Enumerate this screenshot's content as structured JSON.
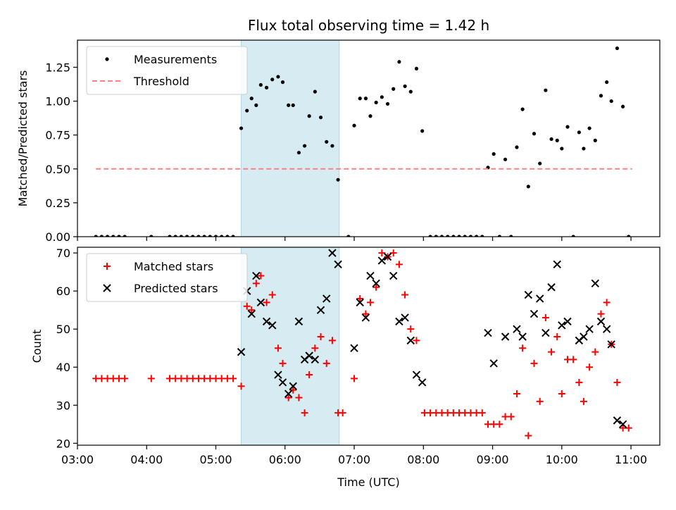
{
  "chart_data": [
    {
      "type": "scatter",
      "title": "Flux total observing time = 1.42 h",
      "xlabel": "",
      "ylabel": "Matched/Predicted stars",
      "xlim": [
        "03:00",
        "11:25"
      ],
      "ylim": [
        0,
        1.45
      ],
      "yticks": [
        0.0,
        0.25,
        0.5,
        0.75,
        1.0,
        1.25
      ],
      "ytick_labels": [
        "0.00",
        "0.25",
        "0.50",
        "0.75",
        "1.00",
        "1.25"
      ],
      "shaded_region": {
        "start": "05:22",
        "end": "06:47",
        "color": "#add8e6"
      },
      "legend_position": "top-left",
      "series": [
        {
          "name": "Measurements",
          "style": "dot",
          "color": "#000000",
          "points": [
            [
              "03:16",
              0
            ],
            [
              "03:21",
              0
            ],
            [
              "03:26",
              0
            ],
            [
              "03:31",
              0
            ],
            [
              "03:36",
              0
            ],
            [
              "03:41",
              0
            ],
            [
              "04:04",
              0
            ],
            [
              "04:20",
              0
            ],
            [
              "04:25",
              0
            ],
            [
              "04:30",
              0
            ],
            [
              "04:35",
              0
            ],
            [
              "04:40",
              0
            ],
            [
              "04:45",
              0
            ],
            [
              "04:50",
              0
            ],
            [
              "04:55",
              0
            ],
            [
              "05:00",
              0
            ],
            [
              "05:05",
              0
            ],
            [
              "05:10",
              0
            ],
            [
              "05:15",
              0
            ],
            [
              "05:22",
              0.8
            ],
            [
              "05:27",
              0.93
            ],
            [
              "05:31",
              1.02
            ],
            [
              "05:35",
              0.97
            ],
            [
              "05:39",
              1.12
            ],
            [
              "05:44",
              1.1
            ],
            [
              "05:49",
              1.16
            ],
            [
              "05:54",
              1.18
            ],
            [
              "05:58",
              1.14
            ],
            [
              "06:03",
              0.97
            ],
            [
              "06:07",
              0.97
            ],
            [
              "06:12",
              0.62
            ],
            [
              "06:17",
              0.67
            ],
            [
              "06:21",
              0.89
            ],
            [
              "06:26",
              1.07
            ],
            [
              "06:31",
              0.88
            ],
            [
              "06:36",
              0.7
            ],
            [
              "06:41",
              0.67
            ],
            [
              "06:46",
              0.42
            ],
            [
              "06:55",
              0
            ],
            [
              "07:00",
              0.82
            ],
            [
              "07:05",
              1.02
            ],
            [
              "07:10",
              1.02
            ],
            [
              "07:14",
              0.89
            ],
            [
              "07:19",
              0.99
            ],
            [
              "07:24",
              1.03
            ],
            [
              "07:29",
              0.98
            ],
            [
              "07:34",
              1.09
            ],
            [
              "07:39",
              1.29
            ],
            [
              "07:44",
              1.11
            ],
            [
              "07:49",
              1.07
            ],
            [
              "07:54",
              1.24
            ],
            [
              "07:59",
              0.78
            ],
            [
              "08:06",
              0
            ],
            [
              "08:11",
              0
            ],
            [
              "08:16",
              0
            ],
            [
              "08:21",
              0
            ],
            [
              "08:26",
              0
            ],
            [
              "08:31",
              0
            ],
            [
              "08:36",
              0
            ],
            [
              "08:41",
              0
            ],
            [
              "08:46",
              0
            ],
            [
              "08:51",
              0
            ],
            [
              "08:56",
              0.51
            ],
            [
              "09:01",
              0.61
            ],
            [
              "09:06",
              0
            ],
            [
              "09:11",
              0.57
            ],
            [
              "09:16",
              0
            ],
            [
              "09:21",
              0.66
            ],
            [
              "09:26",
              0.94
            ],
            [
              "09:31",
              0.37
            ],
            [
              "09:36",
              0.76
            ],
            [
              "09:41",
              0.54
            ],
            [
              "09:46",
              1.08
            ],
            [
              "09:51",
              0.72
            ],
            [
              "09:56",
              0.71
            ],
            [
              "10:00",
              0.65
            ],
            [
              "10:05",
              0.81
            ],
            [
              "10:10",
              0
            ],
            [
              "10:15",
              0.77
            ],
            [
              "10:19",
              0.65
            ],
            [
              "10:24",
              0.8
            ],
            [
              "10:29",
              0.71
            ],
            [
              "10:34",
              1.04
            ],
            [
              "10:39",
              1.14
            ],
            [
              "10:43",
              1.0
            ],
            [
              "10:48",
              1.39
            ],
            [
              "10:53",
              0.96
            ],
            [
              "10:58",
              0
            ]
          ]
        },
        {
          "name": "Threshold",
          "style": "dashed-line",
          "color": "#ff8080",
          "points": [
            [
              "03:16",
              0.5
            ],
            [
              "11:01",
              0.5
            ]
          ]
        }
      ]
    },
    {
      "type": "scatter",
      "title": "",
      "xlabel": "Time (UTC)",
      "ylabel": "Count",
      "xlim": [
        "03:00",
        "11:25"
      ],
      "ylim": [
        19.5,
        71.5
      ],
      "yticks": [
        20,
        30,
        40,
        50,
        60,
        70
      ],
      "ytick_labels": [
        "20",
        "30",
        "40",
        "50",
        "60",
        "70"
      ],
      "xticks": [
        "03:00",
        "04:00",
        "05:00",
        "06:00",
        "07:00",
        "08:00",
        "09:00",
        "10:00",
        "11:00"
      ],
      "xtick_labels": [
        "03:00",
        "04:00",
        "05:00",
        "06:00",
        "07:00",
        "08:00",
        "09:00",
        "10:00",
        "11:00"
      ],
      "shaded_region": {
        "start": "05:22",
        "end": "06:47",
        "color": "#add8e6"
      },
      "legend_position": "top-left",
      "series": [
        {
          "name": "Matched stars",
          "marker": "plus",
          "color": "#ff0000",
          "points": [
            [
              "03:16",
              37
            ],
            [
              "03:21",
              37
            ],
            [
              "03:26",
              37
            ],
            [
              "03:31",
              37
            ],
            [
              "03:36",
              37
            ],
            [
              "03:41",
              37
            ],
            [
              "04:04",
              37
            ],
            [
              "04:20",
              37
            ],
            [
              "04:25",
              37
            ],
            [
              "04:30",
              37
            ],
            [
              "04:35",
              37
            ],
            [
              "04:40",
              37
            ],
            [
              "04:45",
              37
            ],
            [
              "04:50",
              37
            ],
            [
              "04:55",
              37
            ],
            [
              "05:00",
              37
            ],
            [
              "05:05",
              37
            ],
            [
              "05:10",
              37
            ],
            [
              "05:15",
              37
            ],
            [
              "05:22",
              35
            ],
            [
              "05:27",
              56
            ],
            [
              "05:31",
              55
            ],
            [
              "05:35",
              62
            ],
            [
              "05:39",
              64
            ],
            [
              "05:44",
              57
            ],
            [
              "05:49",
              59
            ],
            [
              "05:54",
              45
            ],
            [
              "05:58",
              41
            ],
            [
              "06:03",
              32
            ],
            [
              "06:07",
              34
            ],
            [
              "06:12",
              32
            ],
            [
              "06:17",
              28
            ],
            [
              "06:21",
              38
            ],
            [
              "06:26",
              45
            ],
            [
              "06:31",
              48
            ],
            [
              "06:36",
              41
            ],
            [
              "06:41",
              47
            ],
            [
              "06:46",
              28
            ],
            [
              "06:50",
              28
            ],
            [
              "07:00",
              37
            ],
            [
              "07:05",
              58
            ],
            [
              "07:10",
              54
            ],
            [
              "07:14",
              57
            ],
            [
              "07:19",
              61
            ],
            [
              "07:24",
              70
            ],
            [
              "07:29",
              69
            ],
            [
              "07:34",
              70
            ],
            [
              "07:39",
              67
            ],
            [
              "07:44",
              59
            ],
            [
              "07:49",
              50
            ],
            [
              "07:54",
              47
            ],
            [
              "08:01",
              28
            ],
            [
              "08:06",
              28
            ],
            [
              "08:11",
              28
            ],
            [
              "08:16",
              28
            ],
            [
              "08:21",
              28
            ],
            [
              "08:26",
              28
            ],
            [
              "08:31",
              28
            ],
            [
              "08:36",
              28
            ],
            [
              "08:41",
              28
            ],
            [
              "08:46",
              28
            ],
            [
              "08:51",
              28
            ],
            [
              "08:56",
              25
            ],
            [
              "09:01",
              25
            ],
            [
              "09:06",
              25
            ],
            [
              "09:11",
              27
            ],
            [
              "09:16",
              27
            ],
            [
              "09:21",
              33
            ],
            [
              "09:26",
              45
            ],
            [
              "09:31",
              22
            ],
            [
              "09:36",
              41
            ],
            [
              "09:41",
              31
            ],
            [
              "09:46",
              53
            ],
            [
              "09:51",
              44
            ],
            [
              "09:56",
              48
            ],
            [
              "10:00",
              33
            ],
            [
              "10:05",
              42
            ],
            [
              "10:10",
              42
            ],
            [
              "10:15",
              36
            ],
            [
              "10:19",
              31
            ],
            [
              "10:24",
              40
            ],
            [
              "10:29",
              44
            ],
            [
              "10:34",
              54
            ],
            [
              "10:39",
              57
            ],
            [
              "10:43",
              46
            ],
            [
              "10:48",
              36
            ],
            [
              "10:53",
              24
            ],
            [
              "10:58",
              24
            ]
          ]
        },
        {
          "name": "Predicted stars",
          "marker": "x",
          "color": "#000000",
          "points": [
            [
              "05:22",
              44
            ],
            [
              "05:27",
              60
            ],
            [
              "05:31",
              54
            ],
            [
              "05:35",
              64
            ],
            [
              "05:39",
              57
            ],
            [
              "05:44",
              52
            ],
            [
              "05:49",
              51
            ],
            [
              "05:54",
              38
            ],
            [
              "05:58",
              36
            ],
            [
              "06:03",
              33
            ],
            [
              "06:07",
              35
            ],
            [
              "06:12",
              52
            ],
            [
              "06:17",
              42
            ],
            [
              "06:21",
              43
            ],
            [
              "06:26",
              42
            ],
            [
              "06:31",
              55
            ],
            [
              "06:36",
              58
            ],
            [
              "06:41",
              70
            ],
            [
              "06:46",
              67
            ],
            [
              "07:00",
              45
            ],
            [
              "07:05",
              57
            ],
            [
              "07:10",
              53
            ],
            [
              "07:14",
              64
            ],
            [
              "07:19",
              62
            ],
            [
              "07:24",
              68
            ],
            [
              "07:29",
              69
            ],
            [
              "07:34",
              64
            ],
            [
              "07:39",
              52
            ],
            [
              "07:44",
              53
            ],
            [
              "07:49",
              47
            ],
            [
              "07:54",
              38
            ],
            [
              "07:59",
              36
            ],
            [
              "08:56",
              49
            ],
            [
              "09:01",
              41
            ],
            [
              "09:11",
              48
            ],
            [
              "09:21",
              50
            ],
            [
              "09:26",
              48
            ],
            [
              "09:31",
              59
            ],
            [
              "09:36",
              54
            ],
            [
              "09:41",
              58
            ],
            [
              "09:46",
              49
            ],
            [
              "09:51",
              61
            ],
            [
              "09:56",
              67
            ],
            [
              "10:00",
              51
            ],
            [
              "10:05",
              52
            ],
            [
              "10:15",
              47
            ],
            [
              "10:19",
              48
            ],
            [
              "10:24",
              50
            ],
            [
              "10:29",
              62
            ],
            [
              "10:34",
              52
            ],
            [
              "10:39",
              50
            ],
            [
              "10:43",
              46
            ],
            [
              "10:48",
              26
            ],
            [
              "10:53",
              25
            ]
          ]
        }
      ]
    }
  ]
}
